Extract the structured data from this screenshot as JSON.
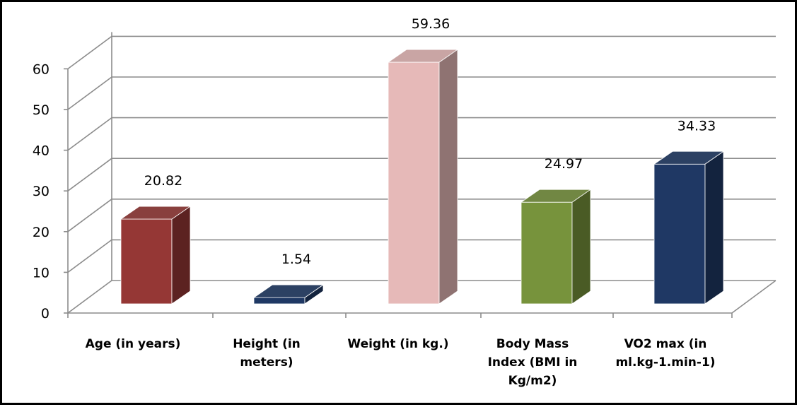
{
  "chart_data": {
    "type": "bar",
    "categories": [
      "Age (in years)",
      "Height (in meters)",
      "Weight (in kg.)",
      "Body Mass Index (BMI in Kg/m2)",
      "VO2 max (in ml.kg-1.min-1)"
    ],
    "category_lines": [
      [
        "Age (in years)"
      ],
      [
        "Height (in",
        "meters)"
      ],
      [
        "Weight (in kg.)"
      ],
      [
        "Body Mass",
        "Index (BMI in",
        "Kg/m2)"
      ],
      [
        "VO2 max (in",
        "ml.kg-1.min-1)"
      ]
    ],
    "values": [
      20.82,
      1.54,
      59.36,
      24.97,
      34.33
    ],
    "data_labels": [
      "20.82",
      "1.54",
      "59.36",
      "24.97",
      "34.33"
    ],
    "title": "",
    "xlabel": "",
    "ylabel": "",
    "ylim": [
      0,
      60
    ],
    "yticks": [
      0,
      10,
      20,
      30,
      40,
      50,
      60
    ],
    "grid": true,
    "legend": "none",
    "style": "3d-columns",
    "colors": [
      "#953735",
      "#1F3864",
      "#E6B9B8",
      "#77933C",
      "#1F3864"
    ]
  }
}
